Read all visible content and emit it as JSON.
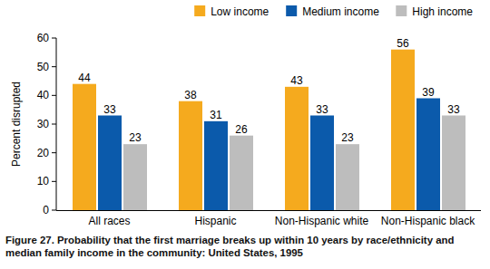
{
  "chart_data": {
    "type": "bar",
    "title": "Figure 27. Probability that the first marriage breaks up within 10 years by race/ethnicity and median family income in the community: United States, 1995",
    "ylabel": "Percent disrupted",
    "categories": [
      "All races",
      "Hispanic",
      "Non-Hispanic white",
      "Non-Hispanic black"
    ],
    "series": [
      {
        "name": "Low income",
        "color": "#f5aa1e",
        "values": [
          44,
          38,
          43,
          56
        ]
      },
      {
        "name": "Medium income",
        "color": "#0b5aab",
        "values": [
          33,
          31,
          33,
          39
        ]
      },
      {
        "name": "High income",
        "color": "#bdbdbd",
        "values": [
          23,
          26,
          23,
          33
        ]
      }
    ],
    "ylim": [
      0,
      60
    ],
    "yticks": [
      0,
      10,
      20,
      30,
      40,
      50,
      60
    ],
    "grid": false,
    "legend": "top-right",
    "data_labels": true
  }
}
